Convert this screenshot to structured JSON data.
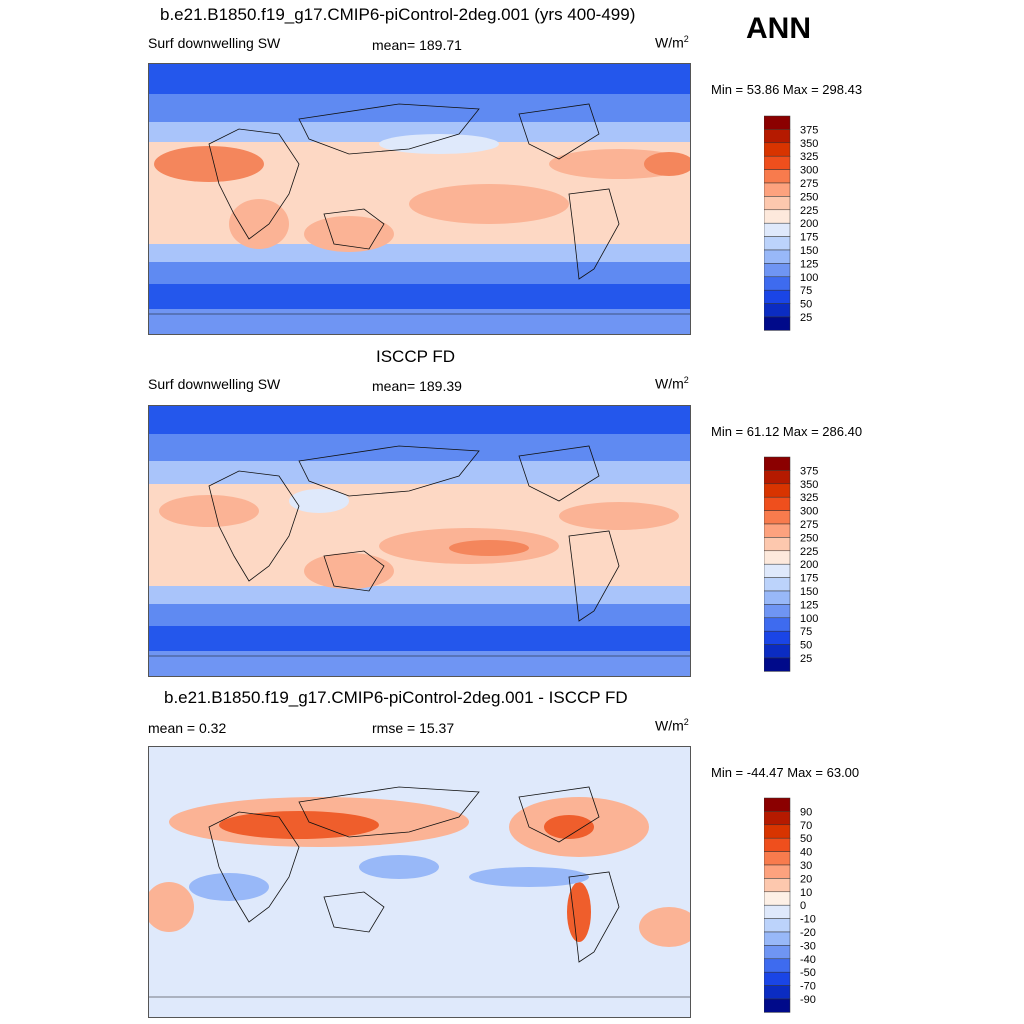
{
  "season": "ANN",
  "panels": [
    {
      "title": "b.e21.B1850.f19_g17.CMIP6-piControl-2deg.001 (yrs 400-499)",
      "left_label": "Surf downwelling SW",
      "center_label": "mean= 189.71",
      "units_base": "W/m",
      "units_exp": "2",
      "minmax": "Min =  53.86 Max = 298.43",
      "colorbar": {
        "labels": [
          "375",
          "350",
          "325",
          "300",
          "275",
          "250",
          "225",
          "200",
          "175",
          "150",
          "125",
          "100",
          "75",
          "50",
          "25"
        ],
        "colors": [
          "#8b0000",
          "#b51a00",
          "#d83400",
          "#ef4f1d",
          "#f87b4d",
          "#fda27e",
          "#fdc8ae",
          "#fde9dc",
          "#dfe9fb",
          "#bcd3fb",
          "#98b8f8",
          "#6f95f3",
          "#3e6bef",
          "#1a45e6",
          "#0b2cc2",
          "#000a8a"
        ]
      }
    },
    {
      "title": "ISCCP FD",
      "left_label": "Surf downwelling SW",
      "center_label": "mean= 189.39",
      "units_base": "W/m",
      "units_exp": "2",
      "minmax": "Min =  61.12 Max = 286.40",
      "colorbar": {
        "labels": [
          "375",
          "350",
          "325",
          "300",
          "275",
          "250",
          "225",
          "200",
          "175",
          "150",
          "125",
          "100",
          "75",
          "50",
          "25"
        ],
        "colors": [
          "#8b0000",
          "#b51a00",
          "#d83400",
          "#ef4f1d",
          "#f87b4d",
          "#fda27e",
          "#fdc8ae",
          "#fde9dc",
          "#dfe9fb",
          "#bcd3fb",
          "#98b8f8",
          "#6f95f3",
          "#3e6bef",
          "#1a45e6",
          "#0b2cc2",
          "#000a8a"
        ]
      }
    },
    {
      "title": "b.e21.B1850.f19_g17.CMIP6-piControl-2deg.001 - ISCCP FD",
      "left_label": "mean =   0.32",
      "center_label": "rmse =  15.37",
      "units_base": "W/m",
      "units_exp": "2",
      "minmax": "Min = -44.47 Max =  63.00",
      "colorbar": {
        "labels": [
          "90",
          "70",
          "50",
          "40",
          "30",
          "20",
          "10",
          "0",
          "-10",
          "-20",
          "-30",
          "-40",
          "-50",
          "-70",
          "-90"
        ],
        "colors": [
          "#8b0000",
          "#b51a00",
          "#d83400",
          "#ef4f1d",
          "#f87b4d",
          "#fda27e",
          "#fdc8ae",
          "#fdf0e6",
          "#dfe9fb",
          "#bcd3fb",
          "#98b8f8",
          "#6f95f3",
          "#3e6bef",
          "#1a45e6",
          "#0b2cc2",
          "#000a8a"
        ]
      }
    }
  ],
  "map_colors": {
    "polar": "#2457ec",
    "high_lat": "#5f8af2",
    "mid_lat": "#a9c4fa",
    "subtropic": "#fdd8c4",
    "tropic_warm": "#fbb395",
    "desert": "#f4865c",
    "diff_neutral": "#dfe9fb",
    "diff_warm": "#fbb395",
    "diff_hot": "#ef5e2c",
    "diff_cool": "#98b8f8"
  }
}
